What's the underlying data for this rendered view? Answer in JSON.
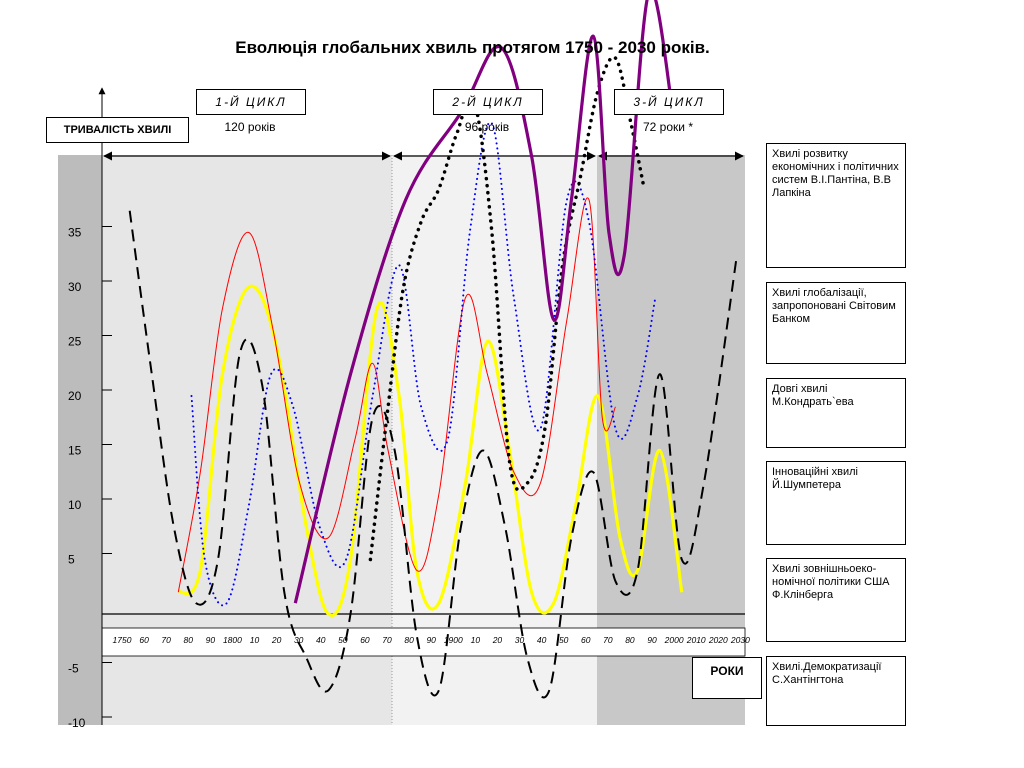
{
  "chart_data": {
    "type": "line",
    "title": "Еволюція глобальних хвиль протягом  1750 - 2030 років.",
    "ylabel": "ТРИВАЛІСТЬ  ХВИЛІ",
    "xlabel": "РОКИ",
    "yticks": [
      35,
      30,
      25,
      20,
      15,
      10,
      5,
      -5,
      -10
    ],
    "ylim": [
      -12,
      44
    ],
    "xlim": [
      1745,
      2035
    ],
    "xticks": [
      "1750",
      "60",
      "70",
      "80",
      "90",
      "1800",
      "10",
      "20",
      "30",
      "40",
      "50",
      "60",
      "70",
      "80",
      "90",
      "1900",
      "10",
      "20",
      "30",
      "40",
      "50",
      "60",
      "70",
      "80",
      "90",
      "2000",
      "2010",
      "2020",
      "2030"
    ],
    "cycles": [
      {
        "label": "1-Й   ЦИКЛ",
        "duration": "120 років",
        "start": 1750,
        "end": 1875
      },
      {
        "label": "2-Й   ЦИКЛ",
        "duration": "96  років",
        "start": 1875,
        "end": 1968
      },
      {
        "label": "3-Й   ЦИКЛ",
        "duration": "72 роки *",
        "start": 1968,
        "end": 2035
      }
    ],
    "series": [
      {
        "name": "Хвилі розвитку економічних і політичних систем В.І.Пантіна, В.В Лапкіна",
        "color": "#000000",
        "style": "dashed",
        "x": [
          1758,
          1768,
          1778,
          1788,
          1798,
          1808,
          1818,
          1828,
          1838,
          1848,
          1858,
          1868,
          1878,
          1888,
          1898,
          1908,
          1918,
          1928,
          1938,
          1948,
          1958,
          1968,
          1978,
          1988,
          1998,
          2008,
          2018,
          2033
        ],
        "y": [
          37,
          22,
          8,
          1,
          5,
          24,
          21,
          2,
          -4,
          -7,
          0,
          18,
          15,
          -2,
          -7,
          8,
          15,
          8,
          -4,
          -7,
          7,
          13,
          3,
          4,
          22,
          5,
          12,
          33
        ]
      },
      {
        "name": "Хвилі глобалізації, запропоновані Світовим Банком",
        "color": "#000000",
        "style": "dotted",
        "x": [
          1867,
          1875,
          1882,
          1890,
          1898,
          1906,
          1914,
          1922,
          1930,
          1938,
          1946,
          1954,
          1962,
          1970,
          1978,
          1985,
          1991
        ],
        "y": [
          5,
          19,
          30,
          36,
          39,
          44,
          47,
          35,
          14,
          12,
          17,
          32,
          40,
          48,
          51,
          45,
          39
        ]
      },
      {
        "name": "Довгі хвилі М.Кондрать`ева",
        "color": "#ff0000",
        "style": "solid",
        "x": [
          1780,
          1790,
          1800,
          1812,
          1823,
          1835,
          1848,
          1860,
          1868,
          1875,
          1888,
          1898,
          1910,
          1920,
          1932,
          1944,
          1956,
          1966,
          1972,
          1978
        ],
        "y": [
          2,
          13,
          28,
          35,
          26,
          12,
          7,
          16,
          23,
          15,
          4,
          11,
          29,
          22,
          13,
          12,
          27,
          38,
          18,
          19
        ]
      },
      {
        "name": "Інноваційні хвилі Й.Шумпетера",
        "color": "#ffff00",
        "style": "solid",
        "x": [
          1780,
          1790,
          1800,
          1812,
          1824,
          1838,
          1848,
          1858,
          1870,
          1880,
          1888,
          1898,
          1910,
          1920,
          1930,
          1940,
          1950,
          1960,
          1970,
          1980,
          1988,
          1998,
          2008
        ],
        "y": [
          2,
          4,
          22,
          30,
          25,
          8,
          0,
          5,
          28,
          20,
          4,
          1,
          12,
          25,
          15,
          2,
          1,
          10,
          20,
          7,
          4,
          15,
          2
        ]
      },
      {
        "name": "Хвилі зовнішньоеко-номічної політики США Ф.Клінберга",
        "color": "#0000ff",
        "style": "dotted",
        "x": [
          1786,
          1792,
          1802,
          1812,
          1822,
          1832,
          1844,
          1856,
          1868,
          1880,
          1890,
          1902,
          1912,
          1922,
          1932,
          1944,
          1956,
          1966,
          1978,
          1988,
          1996
        ],
        "y": [
          20,
          5,
          1,
          10,
          22,
          19,
          8,
          5,
          20,
          32,
          19,
          16,
          35,
          45,
          29,
          17,
          38,
          36,
          17,
          20,
          29
        ]
      },
      {
        "name": "Хвилі.Демократизації С.Хантінгтона",
        "color": "#800080",
        "style": "solid",
        "x": [
          1833,
          1858,
          1883,
          1908,
          1926,
          1940,
          1950,
          1958,
          1968,
          1975,
          1982,
          1993,
          2004
        ],
        "y": [
          1,
          22,
          38,
          46,
          52,
          42,
          27,
          38,
          53,
          35,
          33,
          57,
          46
        ]
      }
    ]
  },
  "legend": {
    "items": [
      "Хвилі розвитку економічних і політичних систем В.І.Пантіна, В.В Лапкіна",
      "Хвилі глобалізації, запропоновані Світовим Банком",
      "Довгі хвилі М.Кондрать`ева",
      "Інноваційні хвилі Й.Шумпетера",
      "Хвилі зовнішньоеко-номічної політики США Ф.Клінберга",
      "Хвилі.Демократизації С.Хантінгтона"
    ]
  },
  "colors": {
    "panel_left": "#e6e6e6",
    "panel_mid": "#f2f2f2",
    "panel_right": "#c8c8c8",
    "axis_strip": "#bcbcbc"
  }
}
